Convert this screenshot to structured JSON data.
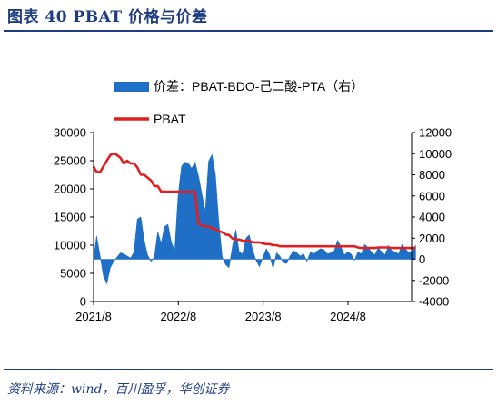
{
  "figure": {
    "title": "图表 40  PBAT 价格与价差",
    "source": "资料来源：wind，百川盈孚，华创证券"
  },
  "chart_data": {
    "type": "area",
    "x_axis": {
      "tick_labels": [
        "2021/8",
        "2022/8",
        "2023/8",
        "2024/8"
      ],
      "range": [
        "2021-08",
        "2025-05"
      ]
    },
    "y_left": {
      "range": [
        0,
        30000
      ],
      "ticks": [
        0,
        5000,
        10000,
        15000,
        20000,
        25000,
        30000
      ],
      "tick_labels": [
        "0",
        "5000",
        "10000",
        "15000",
        "20000",
        "25000",
        "30000"
      ]
    },
    "y_right": {
      "range": [
        -4000,
        12000
      ],
      "ticks": [
        -4000,
        -2000,
        0,
        2000,
        4000,
        6000,
        8000,
        10000,
        12000
      ],
      "tick_labels": [
        "-4000",
        "-2000",
        "0",
        "2000",
        "4000",
        "6000",
        "8000",
        "10000",
        "12000"
      ]
    },
    "grid": false,
    "legend_position": "top-left",
    "series": [
      {
        "name": "价差：PBAT-BDO-己二酸-PTA（右）",
        "kind": "area",
        "axis": "right",
        "color": "#1f6fc7",
        "x": [
          2021.58,
          2021.62,
          2021.66,
          2021.7,
          2021.74,
          2021.78,
          2021.82,
          2021.86,
          2021.9,
          2021.94,
          2021.98,
          2022.02,
          2022.06,
          2022.1,
          2022.14,
          2022.18,
          2022.22,
          2022.26,
          2022.3,
          2022.34,
          2022.38,
          2022.42,
          2022.46,
          2022.5,
          2022.54,
          2022.58,
          2022.62,
          2022.66,
          2022.7,
          2022.74,
          2022.78,
          2022.82,
          2022.86,
          2022.9,
          2022.94,
          2022.98,
          2023.02,
          2023.06,
          2023.1,
          2023.14,
          2023.18,
          2023.22,
          2023.26,
          2023.3,
          2023.34,
          2023.38,
          2023.42,
          2023.46,
          2023.5,
          2023.54,
          2023.58,
          2023.62,
          2023.66,
          2023.7,
          2023.74,
          2023.78,
          2023.82,
          2023.86,
          2023.9,
          2023.94,
          2023.98,
          2024.02,
          2024.06,
          2024.1,
          2024.14,
          2024.18,
          2024.22,
          2024.26,
          2024.3,
          2024.34,
          2024.38,
          2024.42,
          2024.46,
          2024.5,
          2024.54,
          2024.58,
          2024.62,
          2024.66,
          2024.7,
          2024.74,
          2024.78,
          2024.82,
          2024.86,
          2024.9,
          2024.94,
          2024.98,
          2025.02,
          2025.06,
          2025.1,
          2025.14,
          2025.18,
          2025.22,
          2025.26,
          2025.3,
          2025.34,
          2025.38
        ],
        "values": [
          -100,
          2200,
          300,
          -1600,
          -2300,
          -800,
          -200,
          200,
          600,
          500,
          300,
          100,
          700,
          3800,
          4000,
          1800,
          400,
          -200,
          200,
          2600,
          1500,
          3100,
          3300,
          1600,
          800,
          6000,
          8800,
          9200,
          9100,
          8600,
          9200,
          7900,
          6200,
          4500,
          9300,
          9900,
          8000,
          3500,
          200,
          -500,
          -800,
          1200,
          2800,
          700,
          500,
          2000,
          2300,
          800,
          -100,
          -700,
          200,
          1000,
          400,
          -900,
          600,
          300,
          -300,
          -400,
          300,
          800,
          600,
          300,
          500,
          -200,
          700,
          500,
          800,
          1000,
          900,
          500,
          600,
          800,
          1800,
          1200,
          400,
          700,
          500,
          -100,
          700,
          500,
          1400,
          1100,
          700,
          400,
          1100,
          700,
          400,
          1300,
          800,
          700,
          500,
          1400,
          1000,
          600,
          800,
          1300
        ]
      },
      {
        "name": "PBAT",
        "kind": "line",
        "axis": "left",
        "color": "#e02020",
        "x": [
          2021.58,
          2021.62,
          2021.66,
          2021.7,
          2021.74,
          2021.78,
          2021.82,
          2021.86,
          2021.9,
          2021.94,
          2021.98,
          2022.02,
          2022.06,
          2022.1,
          2022.14,
          2022.18,
          2022.22,
          2022.26,
          2022.3,
          2022.34,
          2022.38,
          2022.42,
          2022.46,
          2022.5,
          2022.54,
          2022.58,
          2022.62,
          2022.66,
          2022.7,
          2022.74,
          2022.78,
          2022.82,
          2022.86,
          2022.9,
          2022.94,
          2022.98,
          2023.02,
          2023.06,
          2023.1,
          2023.14,
          2023.18,
          2023.22,
          2023.26,
          2023.3,
          2023.34,
          2023.38,
          2023.42,
          2023.46,
          2023.5,
          2023.54,
          2023.58,
          2023.62,
          2023.66,
          2023.7,
          2023.74,
          2023.78,
          2023.82,
          2023.86,
          2023.9,
          2023.94,
          2023.98,
          2024.02,
          2024.06,
          2024.1,
          2024.14,
          2024.18,
          2024.22,
          2024.26,
          2024.3,
          2024.34,
          2024.38,
          2024.42,
          2024.46,
          2024.5,
          2024.54,
          2024.58,
          2024.62,
          2024.66,
          2024.7,
          2024.74,
          2024.78,
          2024.82,
          2024.86,
          2024.9,
          2024.94,
          2024.98,
          2025.02,
          2025.06,
          2025.1,
          2025.14,
          2025.18,
          2025.22,
          2025.26,
          2025.3,
          2025.34,
          2025.38
        ],
        "values": [
          24000,
          23000,
          23000,
          24000,
          25000,
          26000,
          26300,
          26000,
          25500,
          24500,
          25000,
          24500,
          24500,
          23800,
          22500,
          22500,
          22000,
          21500,
          20500,
          20500,
          19500,
          19500,
          19500,
          19500,
          19500,
          19500,
          19500,
          19500,
          19500,
          19500,
          19500,
          13800,
          13500,
          13300,
          13300,
          13000,
          12800,
          12500,
          12300,
          11900,
          11800,
          11200,
          11000,
          11000,
          10800,
          10800,
          10800,
          10500,
          10500,
          10500,
          10300,
          10200,
          10200,
          10000,
          10000,
          9800,
          9800,
          9800,
          9800,
          9800,
          9800,
          9800,
          9800,
          9800,
          9800,
          9800,
          9800,
          9800,
          9800,
          9800,
          9800,
          9800,
          9800,
          9800,
          9800,
          9800,
          9800,
          9800,
          9600,
          9500,
          9500,
          9500,
          9500,
          9500,
          9600,
          9600,
          9600,
          9600,
          9500,
          9500,
          9500,
          9500,
          9500,
          9500,
          9500,
          9500
        ]
      }
    ]
  }
}
